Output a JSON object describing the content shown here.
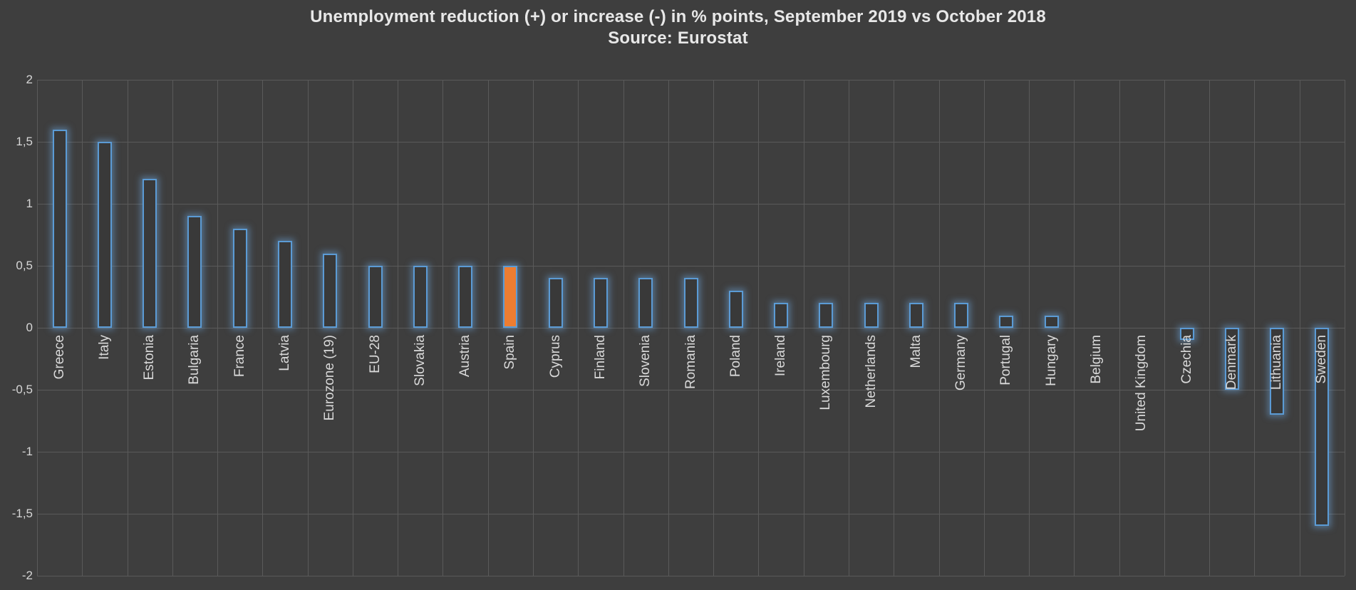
{
  "title": {
    "line1": "Unemployment reduction (+) or increase (-) in % points, September 2019 vs October 2018",
    "line2": "Source: Eurostat"
  },
  "colors": {
    "background": "#3E3E3E",
    "gridline": "#5A5A5A",
    "bar_border": "#5B9BD5",
    "bar_fill": "#393939",
    "highlight_fill": "#ED7D31",
    "bar_glow": "rgba(110,165,220,0.5)",
    "tick_text": "#D6D6D6",
    "label_text": "#D9D9D9",
    "title_text": "#E8E8E8"
  },
  "y_axis": {
    "tick_labels": [
      "2",
      "1,5",
      "1",
      "0,5",
      "0",
      "-0,5",
      "-1",
      "-1,5",
      "-2"
    ],
    "tick_values": [
      2,
      1.5,
      1,
      0.5,
      0,
      -0.5,
      -1,
      -1.5,
      -2
    ]
  },
  "chart_data": {
    "type": "bar",
    "title": "Unemployment reduction (+) or increase (-) in % points, September 2019 vs October 2018",
    "subtitle": "Source: Eurostat",
    "xlabel": "",
    "ylabel": "",
    "ylim": [
      -2,
      2
    ],
    "grid": true,
    "legend": "none",
    "bar_style": "outlined",
    "decimal_separator": ",",
    "highlighted_category": "Spain",
    "categories": [
      "Greece",
      "Italy",
      "Estonia",
      "Bulgaria",
      "France",
      "Latvia",
      "Eurozone (19)",
      "EU-28",
      "Slovakia",
      "Austria",
      "Spain",
      "Cyprus",
      "Finland",
      "Slovenia",
      "Romania",
      "Poland",
      "Ireland",
      "Luxembourg",
      "Netherlands",
      "Malta",
      "Germany",
      "Portugal",
      "Hungary",
      "Belgium",
      "United Kingdom",
      "Czechia",
      "Denmark",
      "Lithuania",
      "Sweden"
    ],
    "values": [
      1.6,
      1.5,
      1.2,
      0.9,
      0.8,
      0.7,
      0.6,
      0.5,
      0.5,
      0.5,
      0.5,
      0.4,
      0.4,
      0.4,
      0.4,
      0.3,
      0.2,
      0.2,
      0.2,
      0.2,
      0.2,
      0.1,
      0.1,
      0.0,
      0.0,
      -0.1,
      -0.5,
      -0.7,
      -1.6
    ]
  }
}
